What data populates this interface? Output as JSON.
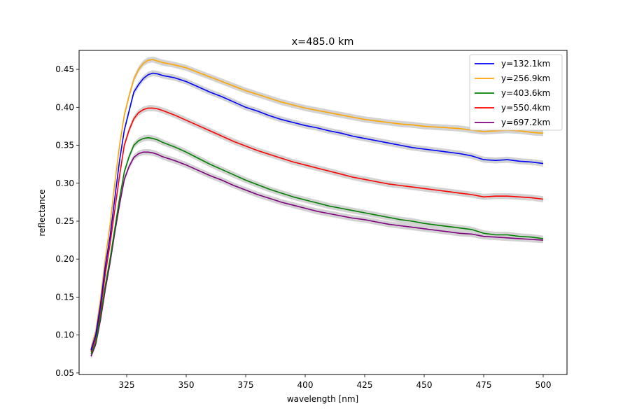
{
  "chart_data": {
    "type": "line",
    "title": "x=485.0 km",
    "xlabel": "wavelength [nm]",
    "ylabel": "reflectance",
    "xlim": [
      305,
      510
    ],
    "ylim": [
      0.048,
      0.475
    ],
    "xticks": [
      325,
      350,
      375,
      400,
      425,
      450,
      475,
      500
    ],
    "yticks": [
      0.05,
      0.1,
      0.15,
      0.2,
      0.25,
      0.3,
      0.35,
      0.4,
      0.45
    ],
    "grid": false,
    "legend_position": "top-right",
    "band_color": "#d3d3d3",
    "x": [
      310,
      312,
      314,
      316,
      318,
      320,
      322,
      324,
      326,
      328,
      330,
      332,
      334,
      336,
      338,
      340,
      345,
      350,
      355,
      360,
      365,
      370,
      375,
      380,
      385,
      390,
      395,
      400,
      405,
      410,
      415,
      420,
      425,
      430,
      435,
      440,
      445,
      450,
      455,
      460,
      465,
      470,
      475,
      480,
      485,
      490,
      495,
      500
    ],
    "series": [
      {
        "name": "y=132.1km",
        "color": "#0000ff",
        "values": [
          0.08,
          0.1,
          0.14,
          0.19,
          0.23,
          0.28,
          0.33,
          0.37,
          0.395,
          0.42,
          0.43,
          0.438,
          0.443,
          0.445,
          0.444,
          0.442,
          0.439,
          0.434,
          0.427,
          0.42,
          0.414,
          0.407,
          0.4,
          0.395,
          0.389,
          0.384,
          0.38,
          0.376,
          0.373,
          0.369,
          0.366,
          0.362,
          0.359,
          0.356,
          0.353,
          0.35,
          0.347,
          0.345,
          0.343,
          0.341,
          0.339,
          0.336,
          0.331,
          0.33,
          0.331,
          0.329,
          0.328,
          0.326
        ]
      },
      {
        "name": "y=256.9km",
        "color": "#ffa500",
        "values": [
          0.082,
          0.105,
          0.148,
          0.2,
          0.245,
          0.3,
          0.35,
          0.39,
          0.415,
          0.437,
          0.45,
          0.458,
          0.462,
          0.463,
          0.461,
          0.459,
          0.456,
          0.452,
          0.446,
          0.44,
          0.434,
          0.428,
          0.422,
          0.417,
          0.412,
          0.407,
          0.403,
          0.399,
          0.396,
          0.393,
          0.39,
          0.387,
          0.384,
          0.382,
          0.38,
          0.378,
          0.377,
          0.375,
          0.374,
          0.373,
          0.372,
          0.37,
          0.368,
          0.369,
          0.37,
          0.369,
          0.367,
          0.366
        ]
      },
      {
        "name": "y=403.6km",
        "color": "#008000",
        "values": [
          0.075,
          0.09,
          0.125,
          0.165,
          0.2,
          0.24,
          0.28,
          0.315,
          0.335,
          0.35,
          0.356,
          0.359,
          0.36,
          0.359,
          0.357,
          0.354,
          0.348,
          0.341,
          0.333,
          0.325,
          0.318,
          0.311,
          0.304,
          0.298,
          0.292,
          0.287,
          0.282,
          0.278,
          0.274,
          0.27,
          0.267,
          0.264,
          0.261,
          0.258,
          0.255,
          0.252,
          0.25,
          0.247,
          0.245,
          0.243,
          0.241,
          0.239,
          0.234,
          0.232,
          0.232,
          0.23,
          0.229,
          0.227
        ]
      },
      {
        "name": "y=550.4km",
        "color": "#ff0000",
        "values": [
          0.078,
          0.095,
          0.133,
          0.18,
          0.22,
          0.265,
          0.31,
          0.35,
          0.37,
          0.385,
          0.393,
          0.397,
          0.399,
          0.399,
          0.398,
          0.396,
          0.39,
          0.383,
          0.376,
          0.369,
          0.362,
          0.355,
          0.349,
          0.343,
          0.338,
          0.333,
          0.328,
          0.324,
          0.32,
          0.316,
          0.312,
          0.308,
          0.305,
          0.302,
          0.299,
          0.297,
          0.295,
          0.293,
          0.291,
          0.289,
          0.287,
          0.285,
          0.282,
          0.283,
          0.283,
          0.282,
          0.281,
          0.279
        ]
      },
      {
        "name": "y=697.2km",
        "color": "#800080",
        "values": [
          0.072,
          0.088,
          0.12,
          0.16,
          0.195,
          0.235,
          0.272,
          0.305,
          0.322,
          0.334,
          0.339,
          0.341,
          0.341,
          0.34,
          0.338,
          0.335,
          0.33,
          0.324,
          0.317,
          0.31,
          0.304,
          0.297,
          0.291,
          0.285,
          0.28,
          0.275,
          0.271,
          0.267,
          0.263,
          0.26,
          0.257,
          0.254,
          0.252,
          0.249,
          0.246,
          0.244,
          0.242,
          0.24,
          0.238,
          0.236,
          0.234,
          0.233,
          0.23,
          0.229,
          0.228,
          0.227,
          0.226,
          0.225
        ]
      }
    ]
  }
}
